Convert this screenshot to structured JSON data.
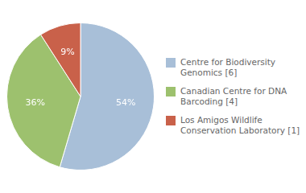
{
  "chart_data": {
    "type": "pie",
    "categories": [
      "Centre for Biodiversity\nGenomics [6]",
      "Canadian Centre for DNA\nBarcoding [4]",
      "Los Amigos Wildlife\nConservation Laboratory [1]"
    ],
    "values": [
      54,
      36,
      9
    ],
    "value_labels": [
      "54%",
      "36%",
      "9%"
    ],
    "colors": [
      "#a8bfd8",
      "#9dc16e",
      "#c9614a"
    ],
    "data_labels": true,
    "legend": "right"
  }
}
